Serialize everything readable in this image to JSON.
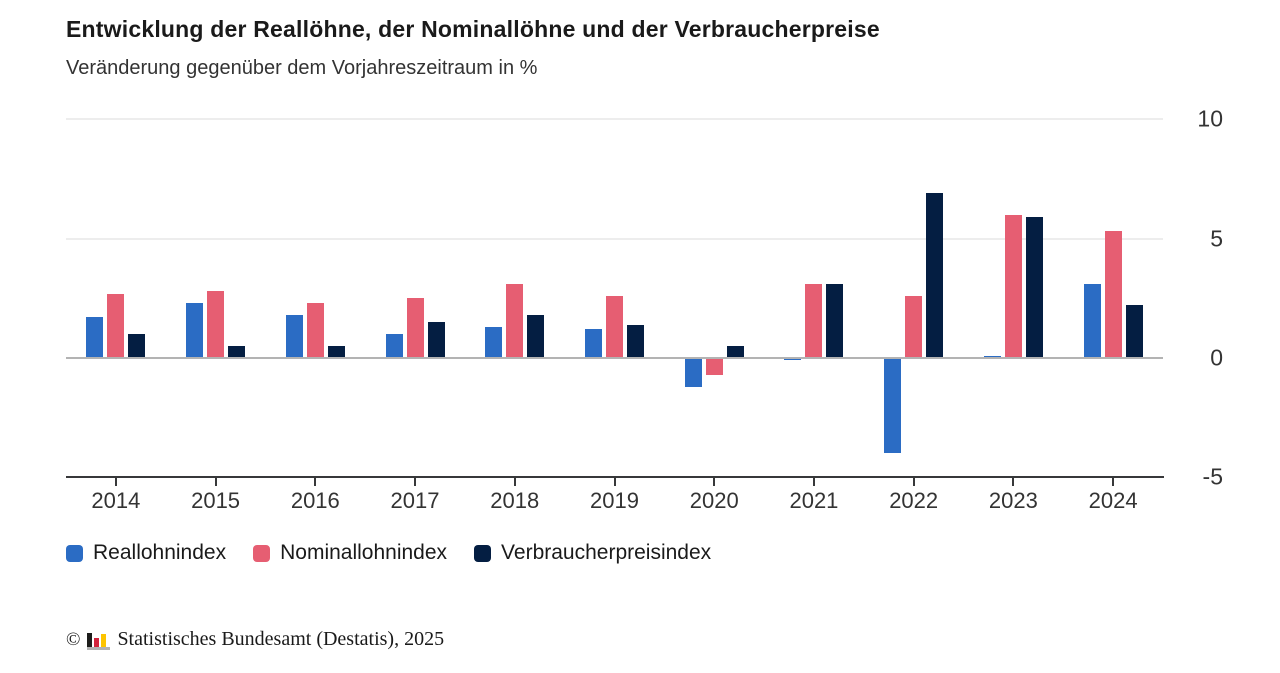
{
  "header": {
    "title": "Entwicklung der Reallöhne, der Nominallöhne und der Verbraucherpreise",
    "subtitle": "Veränderung gegenüber dem Vorjahreszeitraum in %"
  },
  "chart_data": {
    "type": "bar",
    "categories": [
      "2014",
      "2015",
      "2016",
      "2017",
      "2018",
      "2019",
      "2020",
      "2021",
      "2022",
      "2023",
      "2024"
    ],
    "series": [
      {
        "name": "Reallohnindex",
        "color": "#2b6cc4",
        "values": [
          1.7,
          2.3,
          1.8,
          1.0,
          1.3,
          1.2,
          -1.2,
          -0.1,
          -4.0,
          0.1,
          3.1
        ]
      },
      {
        "name": "Nominallohnindex",
        "color": "#e65e72",
        "values": [
          2.7,
          2.8,
          2.3,
          2.5,
          3.1,
          2.6,
          -0.7,
          3.1,
          2.6,
          6.0,
          5.3
        ]
      },
      {
        "name": "Verbraucherpreisindex",
        "color": "#041e42",
        "values": [
          1.0,
          0.5,
          0.5,
          1.5,
          1.8,
          1.4,
          0.5,
          3.1,
          6.9,
          5.9,
          2.2
        ]
      }
    ],
    "title": "Entwicklung der Reallöhne, der Nominallöhne und der Verbraucherpreise",
    "xlabel": "",
    "ylabel": "",
    "ylim": [
      -5,
      10
    ],
    "yticks": [
      10,
      5,
      0,
      -5
    ],
    "grid": true,
    "legend_position": "bottom"
  },
  "footer": {
    "copyright_symbol": "©",
    "source": "Statistisches Bundesamt (Destatis), 2025",
    "logo": "destatis-bar-chart-logo"
  }
}
